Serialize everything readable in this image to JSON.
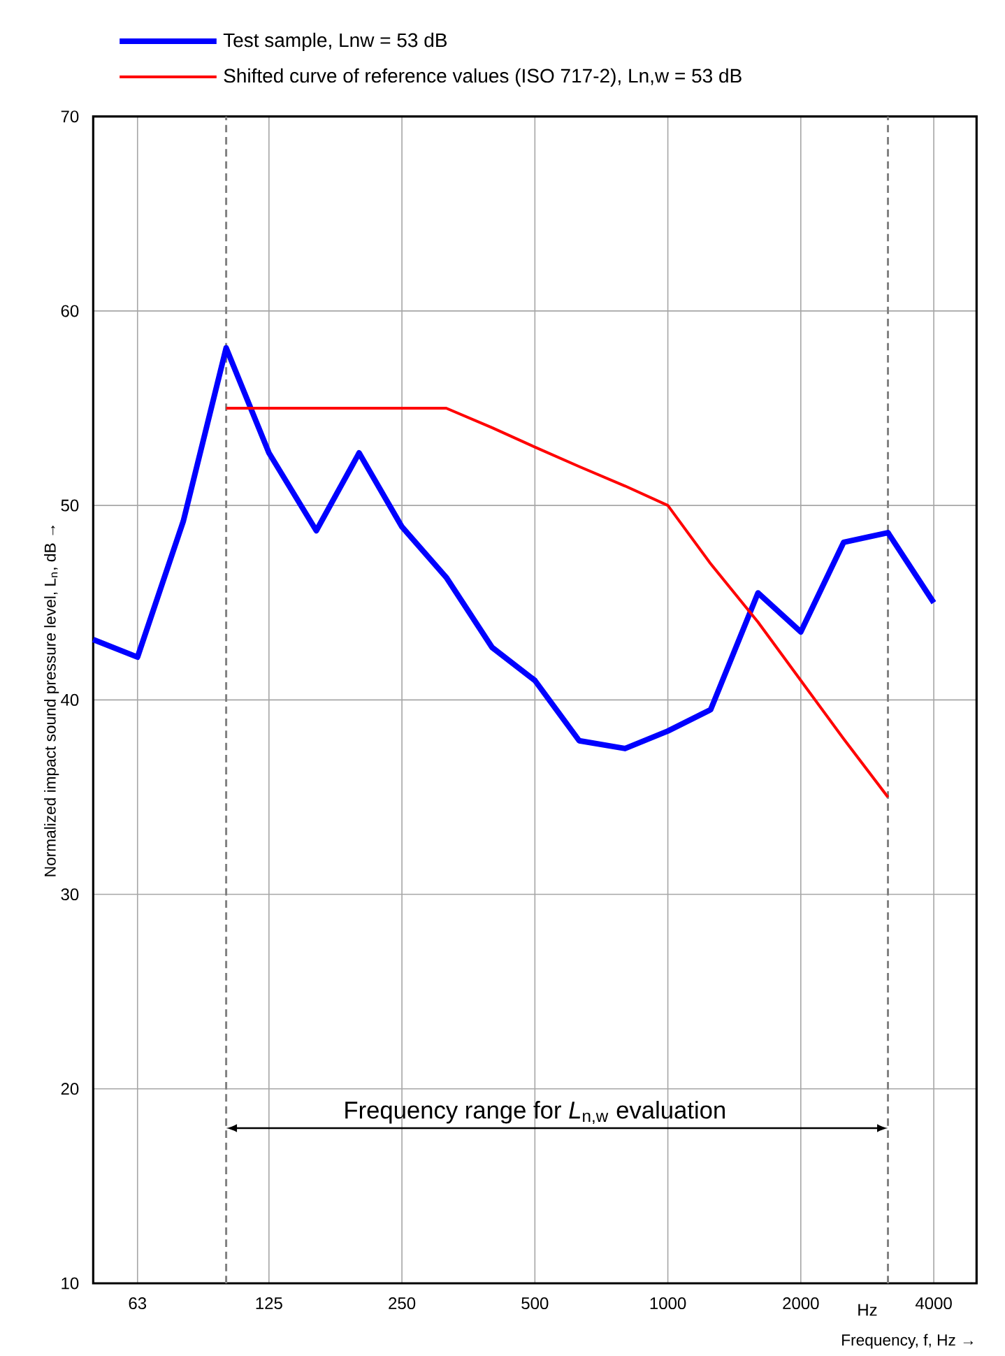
{
  "chart_data": {
    "type": "line",
    "xlabel": "Frequency, f, Hz →",
    "ylabel": "Normalized impact sound pressure level, L$_{n}$, dB →",
    "log": "x",
    "xlim": [
      50,
      5000
    ],
    "ylim": [
      10,
      70
    ],
    "xticks": [
      63,
      125,
      250,
      500,
      1000,
      2000,
      4000
    ],
    "yticks": [
      10,
      20,
      30,
      40,
      50,
      60,
      70
    ],
    "grid": true,
    "legend": "top",
    "marker": "none",
    "line_style": "solid",
    "series": [
      {
        "name": "Test sample, Lnw = 53 dB",
        "color": "#0000ff",
        "x": [
          50,
          63,
          80,
          100,
          125,
          160,
          200,
          250,
          315,
          400,
          500,
          630,
          800,
          1000,
          1250,
          1600,
          2000,
          2500,
          3150,
          4000
        ],
        "values": [
          43.1,
          42.2,
          49.2,
          58.1,
          52.7,
          48.7,
          52.7,
          48.9,
          46.3,
          42.7,
          41.0,
          37.9,
          37.5,
          38.4,
          39.5,
          45.5,
          43.5,
          48.1,
          48.6,
          45
        ]
      },
      {
        "name": "Shifted curve of reference values (ISO 717-2), Ln,w = 53 dB",
        "color": "#ff0000",
        "x": [
          100,
          125,
          160,
          200,
          250,
          315,
          400,
          500,
          630,
          800,
          1000,
          1250,
          1600,
          2000,
          2500,
          3150
        ],
        "values": [
          55,
          55,
          55,
          55,
          55,
          55,
          54,
          53,
          52,
          51,
          50,
          47,
          44,
          41,
          38,
          35
        ]
      }
    ],
    "ref_lines": [
      {
        "axis": "x",
        "value": 100,
        "color": "#808080",
        "line_style": "dashed"
      },
      {
        "axis": "x",
        "value": 3150,
        "color": "#808080",
        "line_style": "dashed"
      }
    ],
    "annotations": [
      "Frequency range for *L*$_{n,w}$ evaluation",
      "Hz"
    ]
  }
}
